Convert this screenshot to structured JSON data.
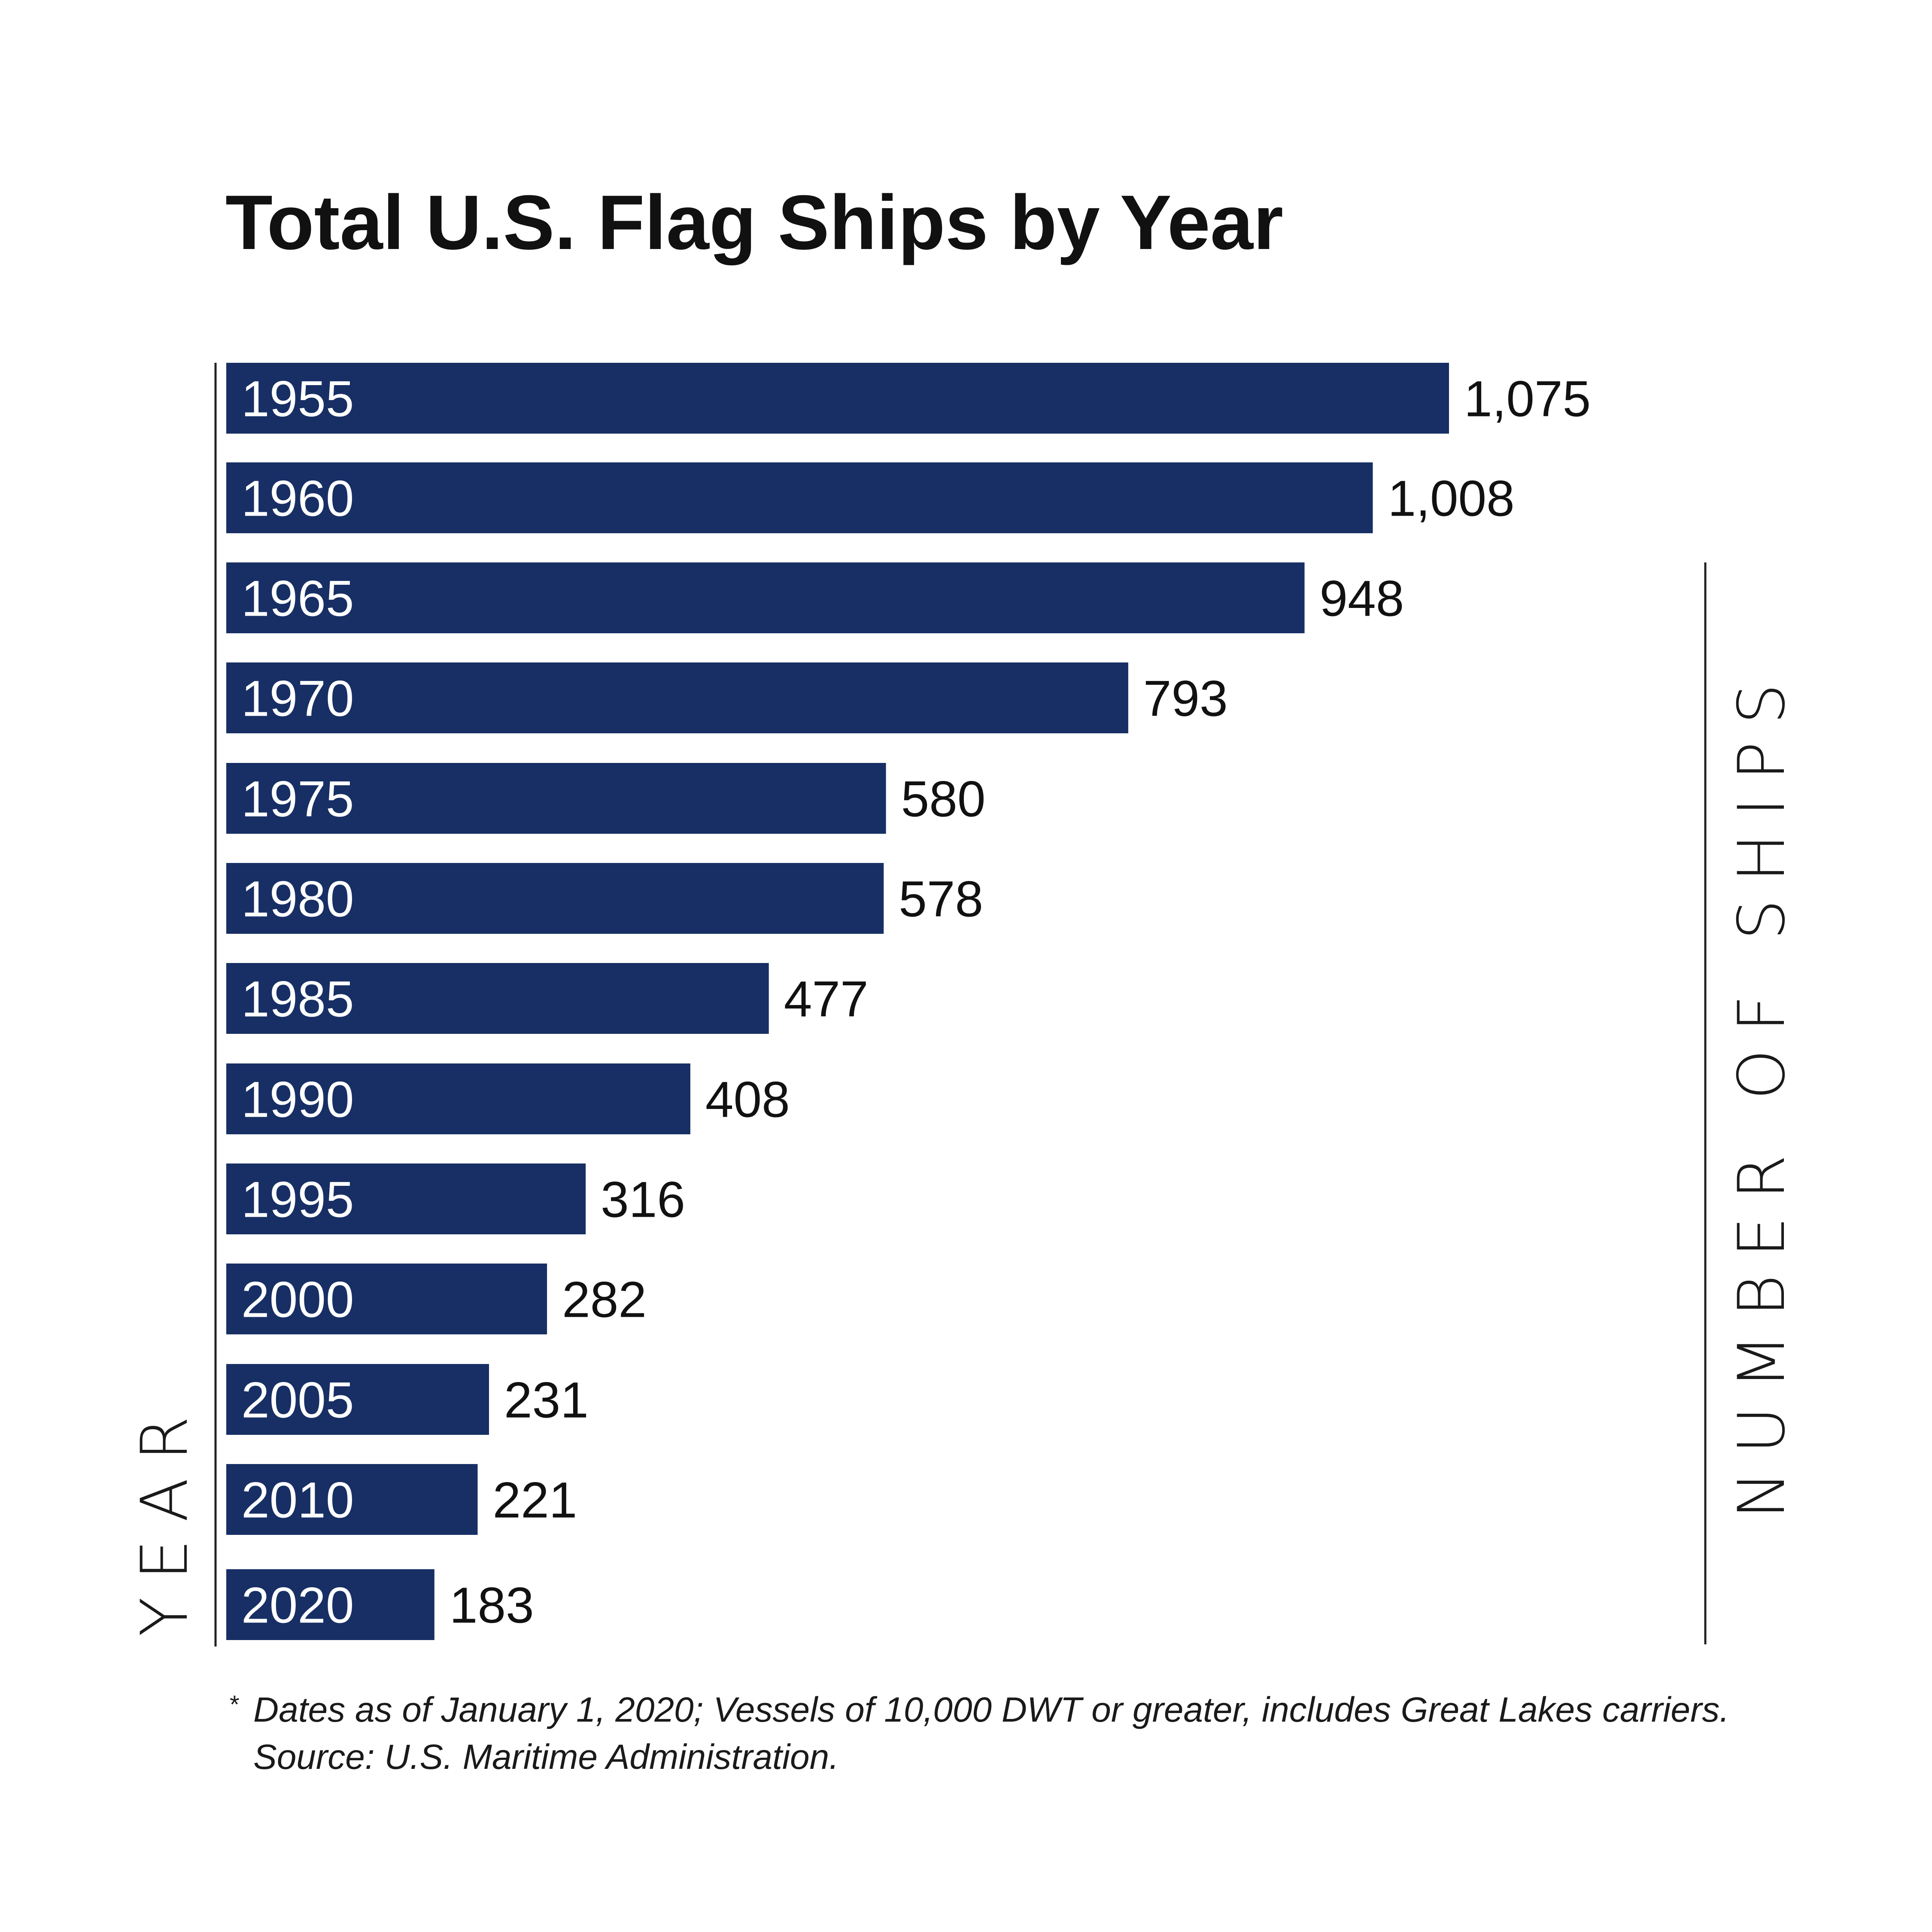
{
  "chart_data": {
    "type": "bar",
    "orientation": "horizontal",
    "title": "Total U.S. Flag Ships by Year",
    "categories": [
      "1955",
      "1960",
      "1965",
      "1970",
      "1975",
      "1980",
      "1985",
      "1990",
      "1995",
      "2000",
      "2005",
      "2010",
      "2020"
    ],
    "values": [
      1075,
      1008,
      948,
      793,
      580,
      578,
      477,
      408,
      316,
      282,
      231,
      221,
      183
    ],
    "value_labels": [
      "1,075",
      "1,008",
      "948",
      "793",
      "580",
      "578",
      "477",
      "408",
      "316",
      "282",
      "231",
      "221",
      "183"
    ],
    "xlabel": "NUMBER OF SHIPS",
    "ylabel": "YEAR",
    "xlim": [
      0,
      1075
    ],
    "bar_color": "#172f64",
    "grid": false,
    "legend": "none"
  },
  "footnote": {
    "marker": "*",
    "line1": "Dates as of January 1, 2020; Vessels of 10,000 DWT or greater, includes Great Lakes carriers.",
    "line2": "Source: U.S. Maritime Administration."
  }
}
